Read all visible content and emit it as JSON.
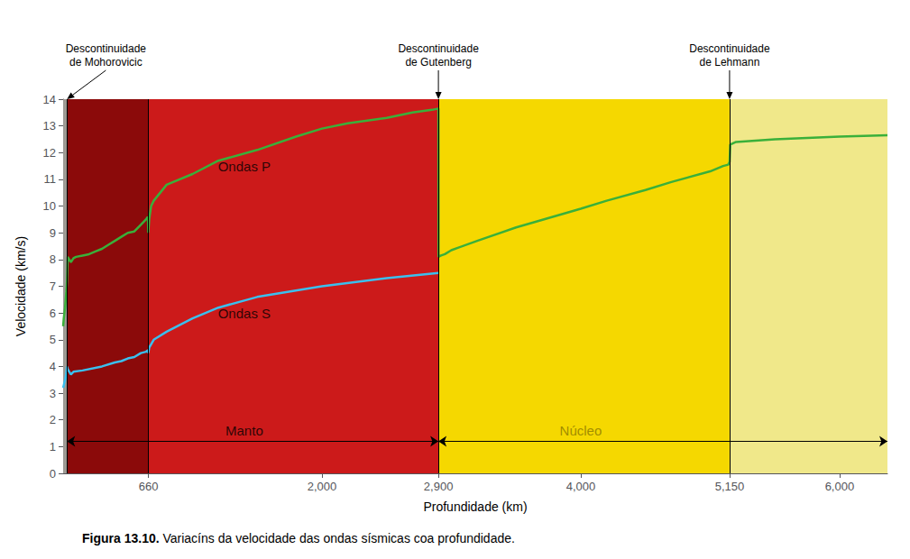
{
  "chart_data": {
    "type": "line",
    "xlabel": "Profundidade (km)",
    "ylabel": "Velocidade (km/s)",
    "caption": {
      "bold": "Figura 13.10.",
      "regular": " Variacíns da velocidade das ondas sísmicas coa profundidade."
    },
    "xlim": [
      0,
      6370
    ],
    "ylim": [
      0,
      14
    ],
    "xticks": [
      660,
      2000,
      2900,
      4000,
      5150,
      6000
    ],
    "yticks": [
      0,
      1,
      2,
      3,
      4,
      5,
      6,
      7,
      8,
      9,
      10,
      11,
      12,
      13,
      14
    ],
    "grid": false,
    "series": [
      {
        "color": "#3ab03a",
        "x": [
          0,
          5,
          10,
          15,
          20,
          25,
          30,
          35,
          60,
          80,
          100,
          150,
          200,
          250,
          300,
          350,
          400,
          450,
          500,
          550,
          600,
          640,
          655,
          658,
          660,
          665,
          680,
          700,
          800,
          1000,
          1200,
          1500,
          1800,
          2000,
          2200,
          2500,
          2700,
          2850,
          2900,
          2901,
          2920,
          2950,
          3000,
          3200,
          3500,
          4000,
          4200,
          4500,
          4700,
          5000,
          5100,
          5140,
          5145,
          5150,
          5155,
          5200,
          5500,
          6000,
          6370
        ],
        "values": [
          5.5,
          5.8,
          6.0,
          6.2,
          6.5,
          6.8,
          7.2,
          8.1,
          7.9,
          8.05,
          8.1,
          8.15,
          8.2,
          8.3,
          8.4,
          8.55,
          8.7,
          8.85,
          9.0,
          9.05,
          9.3,
          9.5,
          9.6,
          9.0,
          9.0,
          9.5,
          10.0,
          10.2,
          10.8,
          11.2,
          11.7,
          12.1,
          12.6,
          12.9,
          13.1,
          13.3,
          13.5,
          13.6,
          13.65,
          8.1,
          8.15,
          8.2,
          8.35,
          8.7,
          9.2,
          9.9,
          10.2,
          10.6,
          10.9,
          11.3,
          11.5,
          11.55,
          11.6,
          11.65,
          12.3,
          12.4,
          12.5,
          12.6,
          12.65
        ]
      },
      {
        "color": "#3bbfee",
        "x": [
          0,
          5,
          10,
          15,
          20,
          25,
          30,
          35,
          60,
          80,
          150,
          300,
          400,
          450,
          500,
          550,
          600,
          640,
          655,
          658,
          660,
          665,
          700,
          800,
          1000,
          1200,
          1500,
          2000,
          2500,
          2900
        ],
        "values": [
          3.2,
          3.3,
          3.4,
          3.5,
          3.6,
          3.8,
          4.0,
          3.9,
          3.7,
          3.8,
          3.85,
          4.0,
          4.15,
          4.2,
          4.3,
          4.35,
          4.5,
          4.55,
          4.6,
          4.5,
          4.5,
          4.7,
          5.0,
          5.3,
          5.8,
          6.2,
          6.6,
          7.0,
          7.3,
          7.5
        ]
      }
    ],
    "regions": [
      {
        "from": 0,
        "to": 30,
        "color": "#9e9a94"
      },
      {
        "from": 30,
        "to": 660,
        "color": "#8b0a0a"
      },
      {
        "from": 660,
        "to": 2900,
        "color": "#cc1a1a"
      },
      {
        "from": 2900,
        "to": 5150,
        "color": "#f5d800"
      },
      {
        "from": 5150,
        "to": 6370,
        "color": "#f0e88a"
      }
    ],
    "vlines": [
      30,
      660,
      2900,
      5150
    ],
    "annotations": [
      {
        "text": "Manto",
        "x": 1400,
        "y": 1.2,
        "color": "#000000",
        "span": [
          30,
          2900
        ]
      },
      {
        "text": "Núcleo",
        "x": 4000,
        "y": 1.2,
        "color": "#8b7800",
        "span": [
          2900,
          6370
        ]
      },
      {
        "text": "Ondas P",
        "x": 1400,
        "y": 11.5,
        "color": "#000000"
      },
      {
        "text": "Ondas S",
        "x": 1400,
        "y": 6.0,
        "color": "#000000"
      }
    ],
    "discontinuities": [
      {
        "text": "Descontinuidade\nde Mohorovicic",
        "x": 30,
        "text_x": 330
      },
      {
        "text": "Descontinuidade\nde Gutenberg",
        "x": 2900
      },
      {
        "text": "Descontinuidade\nde Lehmann",
        "x": 5150
      }
    ]
  }
}
